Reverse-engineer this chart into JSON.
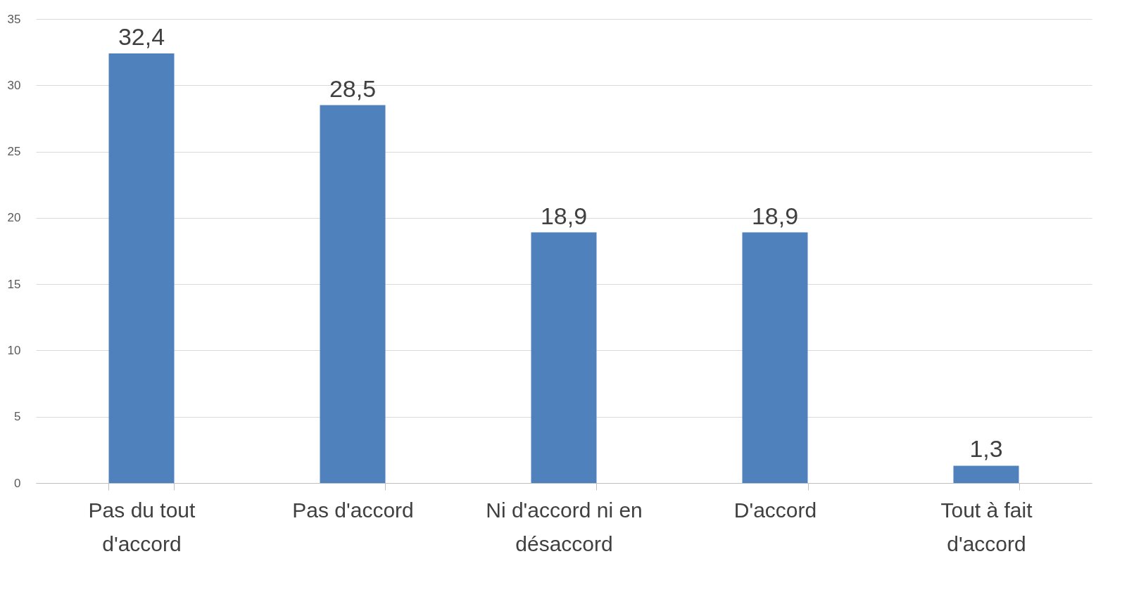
{
  "chart_data": {
    "type": "bar",
    "categories": [
      "Pas du tout d'accord",
      "Pas d'accord",
      "Ni d'accord ni en désaccord",
      "D'accord",
      "Tout à fait d'accord"
    ],
    "values": [
      32.4,
      28.5,
      18.9,
      18.9,
      1.3
    ],
    "value_labels": [
      "32,4",
      "28,5",
      "18,9",
      "18,9",
      "1,3"
    ],
    "color": "#4f81bd",
    "ylim": [
      0,
      35
    ],
    "yticks": [
      0,
      5,
      10,
      15,
      20,
      25,
      30,
      35
    ],
    "grid": "y"
  }
}
